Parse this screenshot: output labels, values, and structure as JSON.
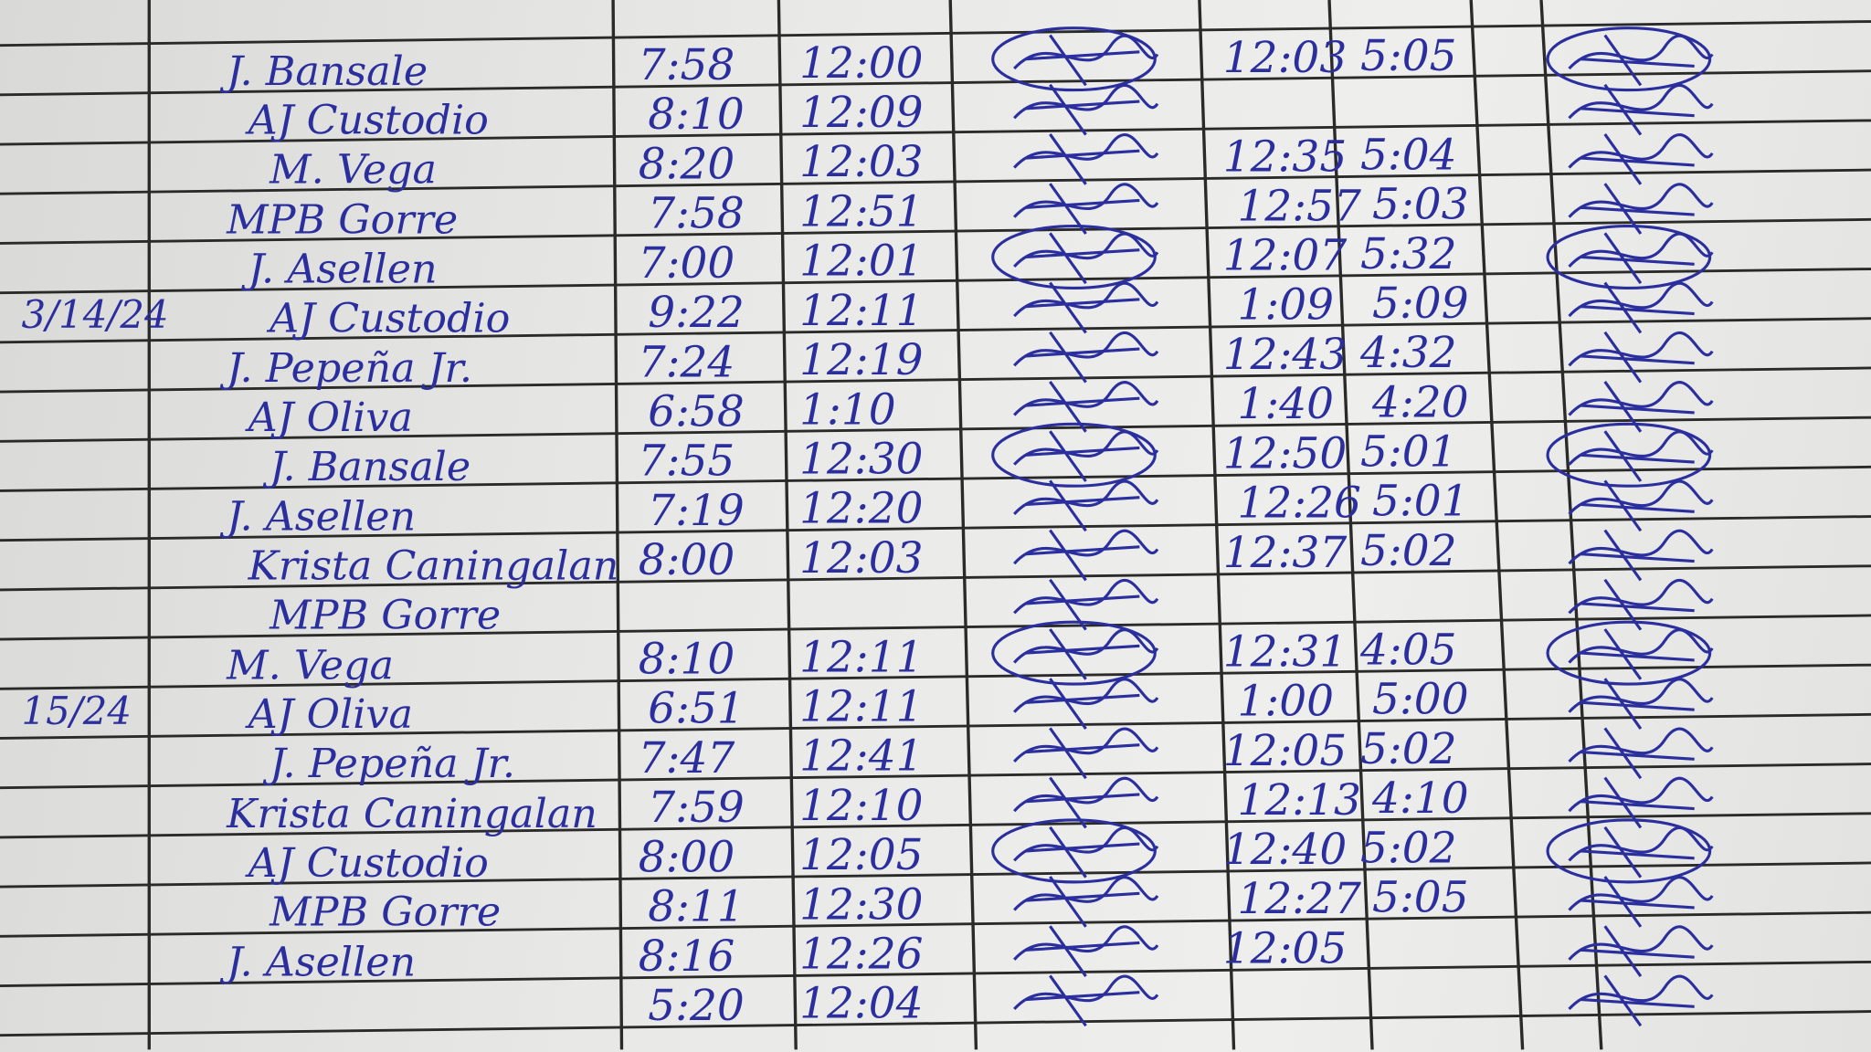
{
  "logbook": {
    "ink_color": "#2b2f9e",
    "dates": [
      {
        "label": "3/14/24",
        "row": 5
      },
      {
        "label": "15/24",
        "row": 13
      }
    ],
    "rows": [
      {
        "name": "J. Bansale",
        "am_in": "7:58",
        "am_out": "12:00",
        "pm_in": "12:03",
        "pm_out": "5:05"
      },
      {
        "name": "AJ Custodio",
        "am_in": "8:10",
        "am_out": "12:09",
        "pm_in": "",
        "pm_out": ""
      },
      {
        "name": "M. Vega",
        "am_in": "8:20",
        "am_out": "12:03",
        "pm_in": "12:35",
        "pm_out": "5:04"
      },
      {
        "name": "MPB Gorre",
        "am_in": "7:58",
        "am_out": "12:51",
        "pm_in": "12:57",
        "pm_out": "5:03"
      },
      {
        "name": "J. Asellen",
        "am_in": "7:00",
        "am_out": "12:01",
        "pm_in": "12:07",
        "pm_out": "5:32"
      },
      {
        "name": "AJ Custodio",
        "am_in": "9:22",
        "am_out": "12:11",
        "pm_in": "1:09",
        "pm_out": "5:09"
      },
      {
        "name": "J. Pepeña Jr.",
        "am_in": "7:24",
        "am_out": "12:19",
        "pm_in": "12:43",
        "pm_out": "4:32"
      },
      {
        "name": "AJ Oliva",
        "am_in": "6:58",
        "am_out": "1:10",
        "pm_in": "1:40",
        "pm_out": "4:20"
      },
      {
        "name": "J. Bansale",
        "am_in": "7:55",
        "am_out": "12:30",
        "pm_in": "12:50",
        "pm_out": "5:01"
      },
      {
        "name": "J. Asellen",
        "am_in": "7:19",
        "am_out": "12:20",
        "pm_in": "12:26",
        "pm_out": "5:01"
      },
      {
        "name": "Krista Caningalan",
        "am_in": "8:00",
        "am_out": "12:03",
        "pm_in": "12:37",
        "pm_out": "5:02"
      },
      {
        "name": "MPB Gorre",
        "am_in": "",
        "am_out": "",
        "pm_in": "",
        "pm_out": ""
      },
      {
        "name": "M. Vega",
        "am_in": "8:10",
        "am_out": "12:11",
        "pm_in": "12:31",
        "pm_out": "4:05"
      },
      {
        "name": "AJ Oliva",
        "am_in": "6:51",
        "am_out": "12:11",
        "pm_in": "1:00",
        "pm_out": "5:00"
      },
      {
        "name": "J. Pepeña Jr.",
        "am_in": "7:47",
        "am_out": "12:41",
        "pm_in": "12:05",
        "pm_out": "5:02"
      },
      {
        "name": "Krista Caningalan",
        "am_in": "7:59",
        "am_out": "12:10",
        "pm_in": "12:13",
        "pm_out": "4:10"
      },
      {
        "name": "AJ Custodio",
        "am_in": "8:00",
        "am_out": "12:05",
        "pm_in": "12:40",
        "pm_out": "5:02"
      },
      {
        "name": "MPB Gorre",
        "am_in": "8:11",
        "am_out": "12:30",
        "pm_in": "12:27",
        "pm_out": "5:05"
      },
      {
        "name": "J. Asellen",
        "am_in": "8:16",
        "am_out": "12:26",
        "pm_in": "12:05",
        "pm_out": ""
      },
      {
        "name": "",
        "am_in": "5:20",
        "am_out": "12:04",
        "pm_in": "",
        "pm_out": ""
      }
    ]
  }
}
